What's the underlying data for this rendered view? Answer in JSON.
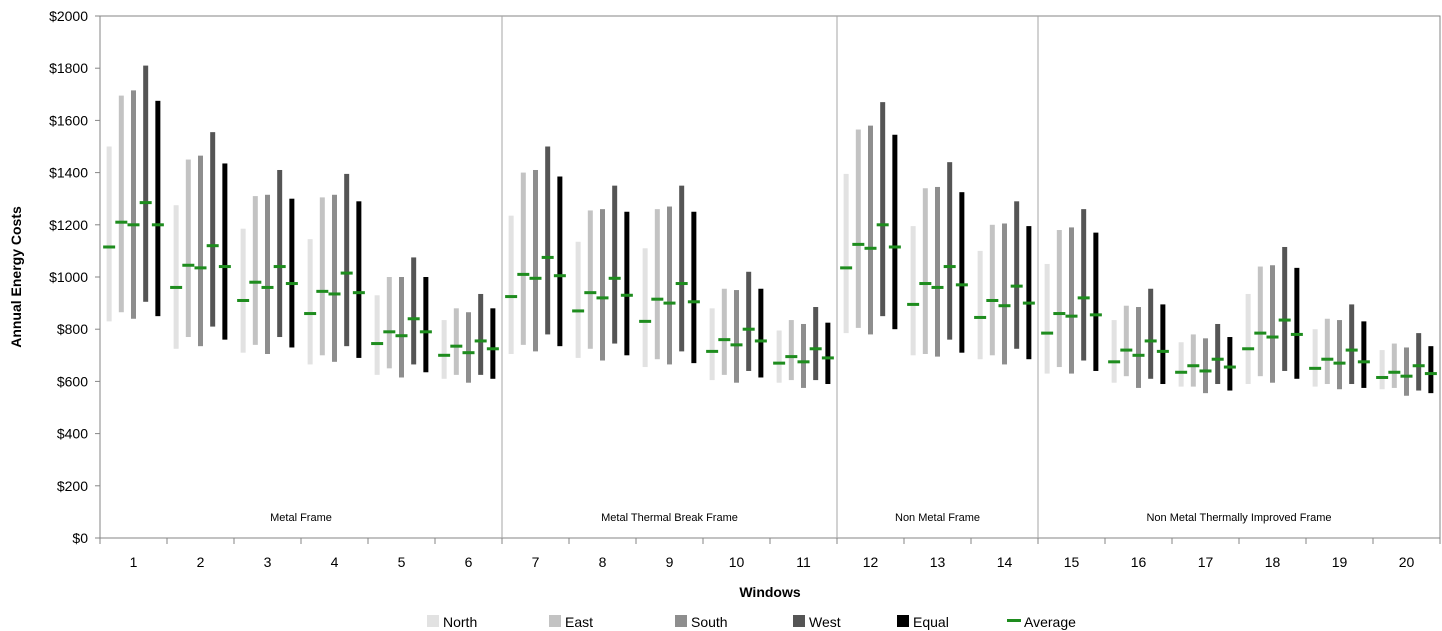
{
  "chart_data": {
    "type": "range-bar",
    "xlabel": "Windows",
    "ylabel": "Annual Energy Costs",
    "ylim": [
      0,
      2000
    ],
    "yticks": [
      0,
      200,
      400,
      600,
      800,
      1000,
      1200,
      1400,
      1600,
      1800,
      2000
    ],
    "ytick_labels": [
      "$0",
      "$200",
      "$400",
      "$600",
      "$800",
      "$1000",
      "$1200",
      "$1400",
      "$1600",
      "$1800",
      "$2000"
    ],
    "categories": [
      "1",
      "2",
      "3",
      "4",
      "5",
      "6",
      "7",
      "8",
      "9",
      "10",
      "11",
      "12",
      "13",
      "14",
      "15",
      "16",
      "17",
      "18",
      "19",
      "20"
    ],
    "groups": [
      {
        "label": "Metal Frame",
        "start": 0,
        "end": 5
      },
      {
        "label": "Metal Thermal Break Frame",
        "start": 6,
        "end": 10
      },
      {
        "label": "Non Metal Frame",
        "start": 11,
        "end": 13
      },
      {
        "label": "Non Metal Thermally Improved Frame",
        "start": 14,
        "end": 19
      }
    ],
    "grid": false,
    "legend_position": "bottom",
    "series": [
      {
        "name": "North",
        "color": "#e2e2e2",
        "low": [
          830,
          725,
          710,
          665,
          625,
          610,
          705,
          690,
          655,
          605,
          595,
          785,
          700,
          685,
          630,
          595,
          580,
          590,
          580,
          570
        ],
        "high": [
          1500,
          1275,
          1185,
          1145,
          930,
          835,
          1235,
          1135,
          1110,
          880,
          795,
          1395,
          1195,
          1100,
          1050,
          835,
          750,
          935,
          800,
          720
        ],
        "avg": [
          1115,
          960,
          910,
          860,
          745,
          700,
          925,
          870,
          830,
          715,
          670,
          1035,
          895,
          845,
          785,
          675,
          635,
          725,
          650,
          615
        ]
      },
      {
        "name": "East",
        "color": "#c3c3c3",
        "low": [
          865,
          770,
          740,
          700,
          650,
          625,
          740,
          725,
          685,
          625,
          605,
          805,
          705,
          700,
          655,
          620,
          580,
          620,
          590,
          575
        ],
        "high": [
          1695,
          1450,
          1310,
          1305,
          1000,
          880,
          1400,
          1255,
          1260,
          955,
          835,
          1565,
          1340,
          1200,
          1180,
          890,
          780,
          1040,
          840,
          745
        ],
        "avg": [
          1210,
          1045,
          980,
          945,
          790,
          735,
          1010,
          940,
          915,
          760,
          695,
          1125,
          975,
          910,
          860,
          720,
          660,
          785,
          685,
          635
        ]
      },
      {
        "name": "South",
        "color": "#8e8e8e",
        "low": [
          840,
          735,
          705,
          675,
          615,
          595,
          715,
          680,
          665,
          595,
          575,
          780,
          695,
          665,
          630,
          575,
          555,
          595,
          570,
          545
        ],
        "high": [
          1715,
          1465,
          1315,
          1315,
          1000,
          865,
          1410,
          1260,
          1270,
          950,
          820,
          1580,
          1345,
          1205,
          1190,
          885,
          765,
          1045,
          835,
          730
        ],
        "avg": [
          1200,
          1035,
          960,
          935,
          775,
          710,
          995,
          920,
          900,
          740,
          675,
          1110,
          960,
          890,
          850,
          700,
          640,
          770,
          670,
          620
        ]
      },
      {
        "name": "West",
        "color": "#555555",
        "low": [
          905,
          810,
          770,
          735,
          665,
          625,
          780,
          745,
          715,
          640,
          605,
          850,
          760,
          725,
          680,
          610,
          590,
          640,
          590,
          565
        ],
        "high": [
          1810,
          1555,
          1410,
          1395,
          1075,
          935,
          1500,
          1350,
          1350,
          1020,
          885,
          1670,
          1440,
          1290,
          1260,
          955,
          820,
          1115,
          895,
          785
        ],
        "avg": [
          1285,
          1120,
          1040,
          1015,
          840,
          755,
          1075,
          995,
          975,
          800,
          725,
          1200,
          1040,
          965,
          920,
          755,
          685,
          835,
          720,
          660
        ]
      },
      {
        "name": "Equal",
        "color": "#000000",
        "low": [
          850,
          760,
          730,
          690,
          635,
          610,
          735,
          700,
          670,
          615,
          590,
          800,
          710,
          685,
          640,
          590,
          565,
          610,
          575,
          555
        ],
        "high": [
          1675,
          1435,
          1300,
          1290,
          1000,
          880,
          1385,
          1250,
          1250,
          955,
          825,
          1545,
          1325,
          1195,
          1170,
          895,
          770,
          1035,
          830,
          735
        ],
        "avg": [
          1200,
          1040,
          975,
          940,
          790,
          725,
          1005,
          930,
          905,
          755,
          690,
          1115,
          970,
          900,
          855,
          715,
          655,
          780,
          675,
          630
        ]
      }
    ],
    "average_series": {
      "name": "Average",
      "color": "#1e8c1e"
    }
  }
}
